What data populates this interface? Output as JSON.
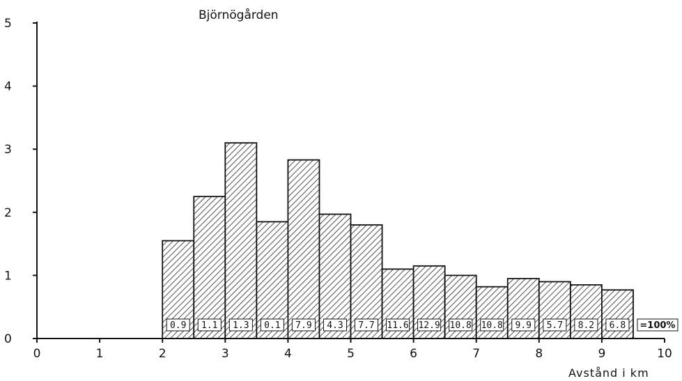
{
  "chart_data": {
    "type": "bar",
    "title": "Björnögården",
    "xlabel": "Avstånd i km",
    "ylabel": "",
    "xlim": [
      0,
      10
    ],
    "ylim": [
      0,
      5
    ],
    "x_ticks": [
      "0",
      "1",
      "2",
      "3",
      "4",
      "5",
      "6",
      "7",
      "8",
      "9",
      "10"
    ],
    "y_ticks": [
      "0",
      "1",
      "2",
      "3",
      "4",
      "5"
    ],
    "bin_width": 0.5,
    "bins": [
      {
        "start": 2.0,
        "value": 1.55,
        "label": "0.9"
      },
      {
        "start": 2.5,
        "value": 2.25,
        "label": "1.1"
      },
      {
        "start": 3.0,
        "value": 3.1,
        "label": "1.3"
      },
      {
        "start": 3.5,
        "value": 1.85,
        "label": "0.1"
      },
      {
        "start": 4.0,
        "value": 2.83,
        "label": "7.9"
      },
      {
        "start": 4.5,
        "value": 1.97,
        "label": "4.3"
      },
      {
        "start": 5.0,
        "value": 1.8,
        "label": "7.7"
      },
      {
        "start": 5.5,
        "value": 1.1,
        "label": "11.6"
      },
      {
        "start": 6.0,
        "value": 1.15,
        "label": "12.9"
      },
      {
        "start": 6.5,
        "value": 1.0,
        "label": "10.8"
      },
      {
        "start": 7.0,
        "value": 0.82,
        "label": "10.8"
      },
      {
        "start": 7.5,
        "value": 0.95,
        "label": "9.9"
      },
      {
        "start": 8.0,
        "value": 0.9,
        "label": "5.7"
      },
      {
        "start": 8.5,
        "value": 0.85,
        "label": "8.2"
      },
      {
        "start": 9.0,
        "value": 0.77,
        "label": "6.8"
      }
    ],
    "total_label": "=100%",
    "grid": false,
    "legend": "none"
  }
}
